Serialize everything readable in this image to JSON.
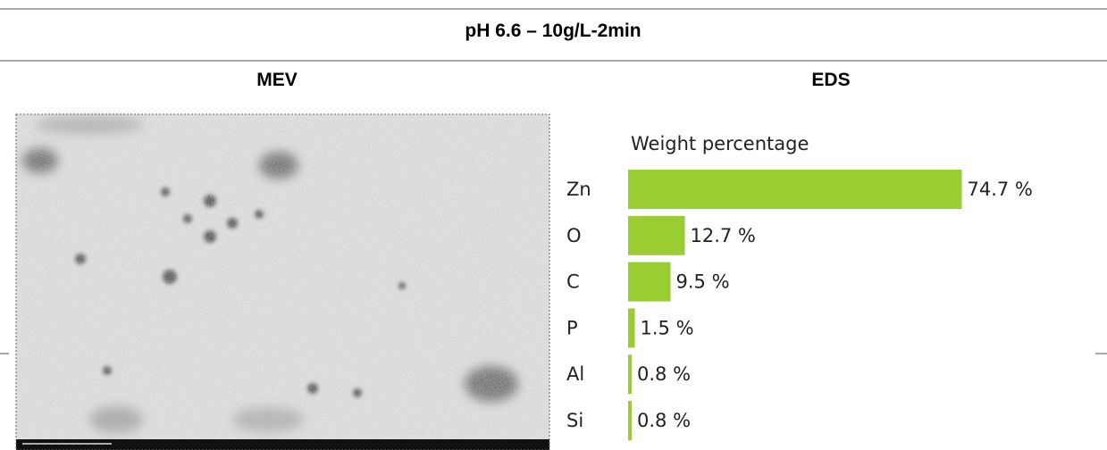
{
  "title": "pH 6.6 – 10g/L-2min",
  "columns": [
    "MEV",
    "EDS"
  ],
  "chart_data": {
    "type": "bar",
    "orientation": "horizontal",
    "title": "Weight percentage",
    "categories": [
      "Zn",
      "O",
      "C",
      "P",
      "Al",
      "Si"
    ],
    "values": [
      74.7,
      12.7,
      9.5,
      1.5,
      0.8,
      0.8
    ],
    "value_labels": [
      "74.7 %",
      "12.7 %",
      "9.5 %",
      "1.5 %",
      "0.8 %",
      "0.8 %"
    ],
    "color": "#9acd32"
  }
}
